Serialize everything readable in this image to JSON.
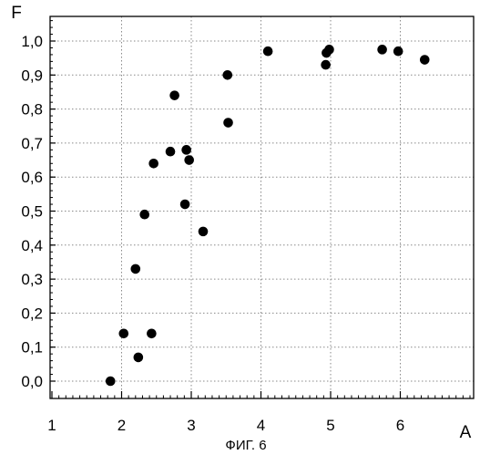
{
  "chart_data": {
    "type": "scatter",
    "xlabel": "A",
    "ylabel": "F",
    "caption": "ФИГ. 6",
    "xlim": [
      1,
      7
    ],
    "ylim": [
      0,
      1.08
    ],
    "x_ticks": [
      1,
      2,
      3,
      4,
      5,
      6
    ],
    "x_tick_labels": [
      "1",
      "2",
      "3",
      "4",
      "5",
      "6"
    ],
    "y_ticks": [
      0.0,
      0.1,
      0.2,
      0.3,
      0.4,
      0.5,
      0.6,
      0.7,
      0.8,
      0.9,
      1.0
    ],
    "y_tick_labels": [
      "0,0",
      "0,1",
      "0,2",
      "0,3",
      "0,4",
      "0,5",
      "0,6",
      "0,7",
      "0,8",
      "0,9",
      "1,0"
    ],
    "grid": true,
    "marker_color": "#000000",
    "points": [
      {
        "x": 1.84,
        "y": 0.0
      },
      {
        "x": 2.03,
        "y": 0.14
      },
      {
        "x": 2.2,
        "y": 0.33
      },
      {
        "x": 2.24,
        "y": 0.07
      },
      {
        "x": 2.33,
        "y": 0.49
      },
      {
        "x": 2.43,
        "y": 0.14
      },
      {
        "x": 2.46,
        "y": 0.64
      },
      {
        "x": 2.7,
        "y": 0.675
      },
      {
        "x": 2.76,
        "y": 0.84
      },
      {
        "x": 2.91,
        "y": 0.52
      },
      {
        "x": 2.93,
        "y": 0.68
      },
      {
        "x": 2.97,
        "y": 0.65
      },
      {
        "x": 3.17,
        "y": 0.44
      },
      {
        "x": 3.52,
        "y": 0.9
      },
      {
        "x": 3.53,
        "y": 0.76
      },
      {
        "x": 4.1,
        "y": 0.97
      },
      {
        "x": 4.93,
        "y": 0.93
      },
      {
        "x": 4.94,
        "y": 0.965
      },
      {
        "x": 4.98,
        "y": 0.975
      },
      {
        "x": 5.74,
        "y": 0.975
      },
      {
        "x": 5.97,
        "y": 0.97
      },
      {
        "x": 6.35,
        "y": 0.945
      }
    ]
  }
}
